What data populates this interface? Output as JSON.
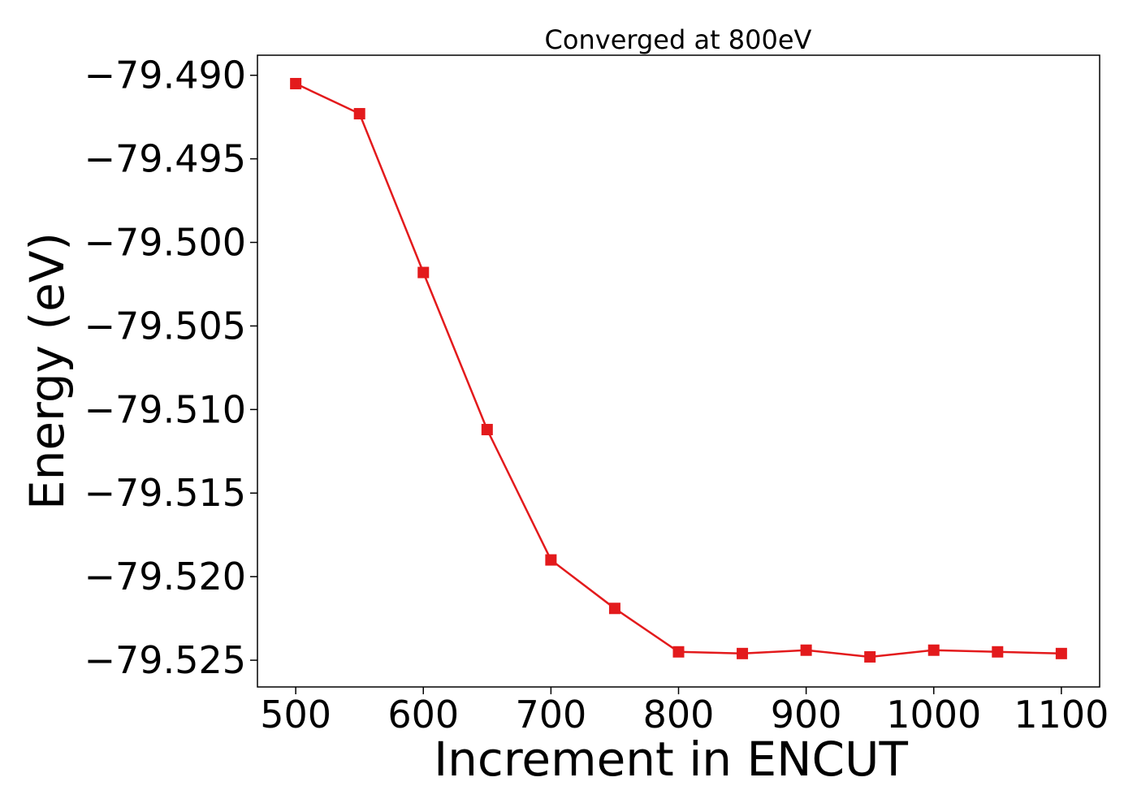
{
  "chart_data": {
    "type": "line",
    "title": "Converged at 800eV",
    "xlabel": "Increment in ENCUT",
    "ylabel": "Energy (eV)",
    "x": [
      500,
      550,
      600,
      650,
      700,
      750,
      800,
      850,
      900,
      950,
      1000,
      1050,
      1100
    ],
    "series": [
      {
        "values": [
          -79.4905,
          -79.4923,
          -79.5018,
          -79.5112,
          -79.519,
          -79.5219,
          -79.5245,
          -79.5246,
          -79.5244,
          -79.5248,
          -79.5244,
          -79.5245,
          -79.5246
        ],
        "color": "#e31a1c",
        "marker": "square"
      }
    ],
    "xlim": [
      470,
      1130
    ],
    "ylim": [
      -79.5266,
      -79.4888
    ],
    "xticks": [
      500,
      600,
      700,
      800,
      900,
      1000,
      1100
    ],
    "xtick_labels": [
      "500",
      "600",
      "700",
      "800",
      "900",
      "1000",
      "1100"
    ],
    "yticks": [
      -79.49,
      -79.495,
      -79.5,
      -79.505,
      -79.51,
      -79.515,
      -79.52,
      -79.525
    ],
    "ytick_labels": [
      "−79.490",
      "−79.495",
      "−79.500",
      "−79.505",
      "−79.510",
      "−79.515",
      "−79.520",
      "−79.525"
    ],
    "grid": false,
    "legend": false
  }
}
